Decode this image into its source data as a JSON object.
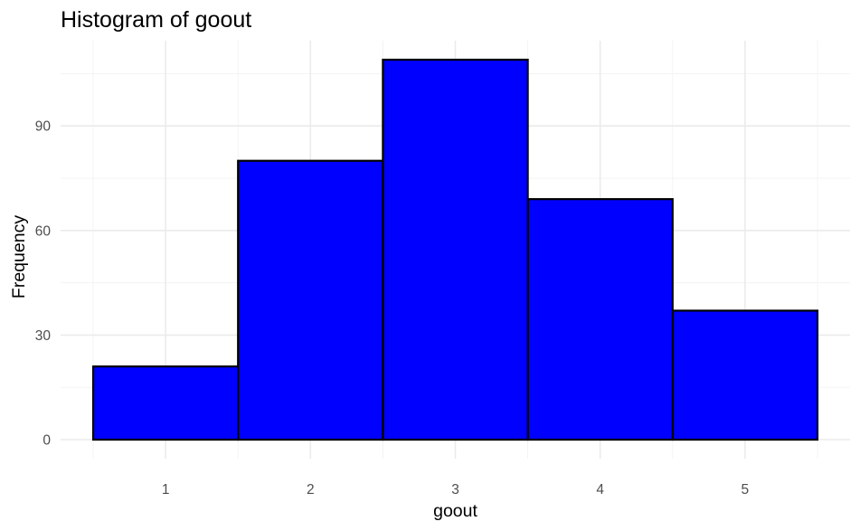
{
  "chart_data": {
    "type": "bar",
    "title": "Histogram of goout",
    "xlabel": "goout",
    "ylabel": "Frequency",
    "categories": [
      "1",
      "2",
      "3",
      "4",
      "5"
    ],
    "values": [
      21,
      80,
      109,
      69,
      37
    ],
    "xlim": [
      0.5,
      5.5
    ],
    "ylim": [
      0,
      109
    ],
    "y_ticks": [
      0,
      30,
      60,
      90
    ],
    "y_tick_labels": [
      "0",
      "30",
      "60",
      "90"
    ],
    "x_ticks": [
      1,
      2,
      3,
      4,
      5
    ],
    "x_tick_labels": [
      "1",
      "2",
      "3",
      "4",
      "5"
    ],
    "bar_fill": "#0000ff",
    "bar_outline": "#000000",
    "grid": true,
    "legend": "none"
  }
}
